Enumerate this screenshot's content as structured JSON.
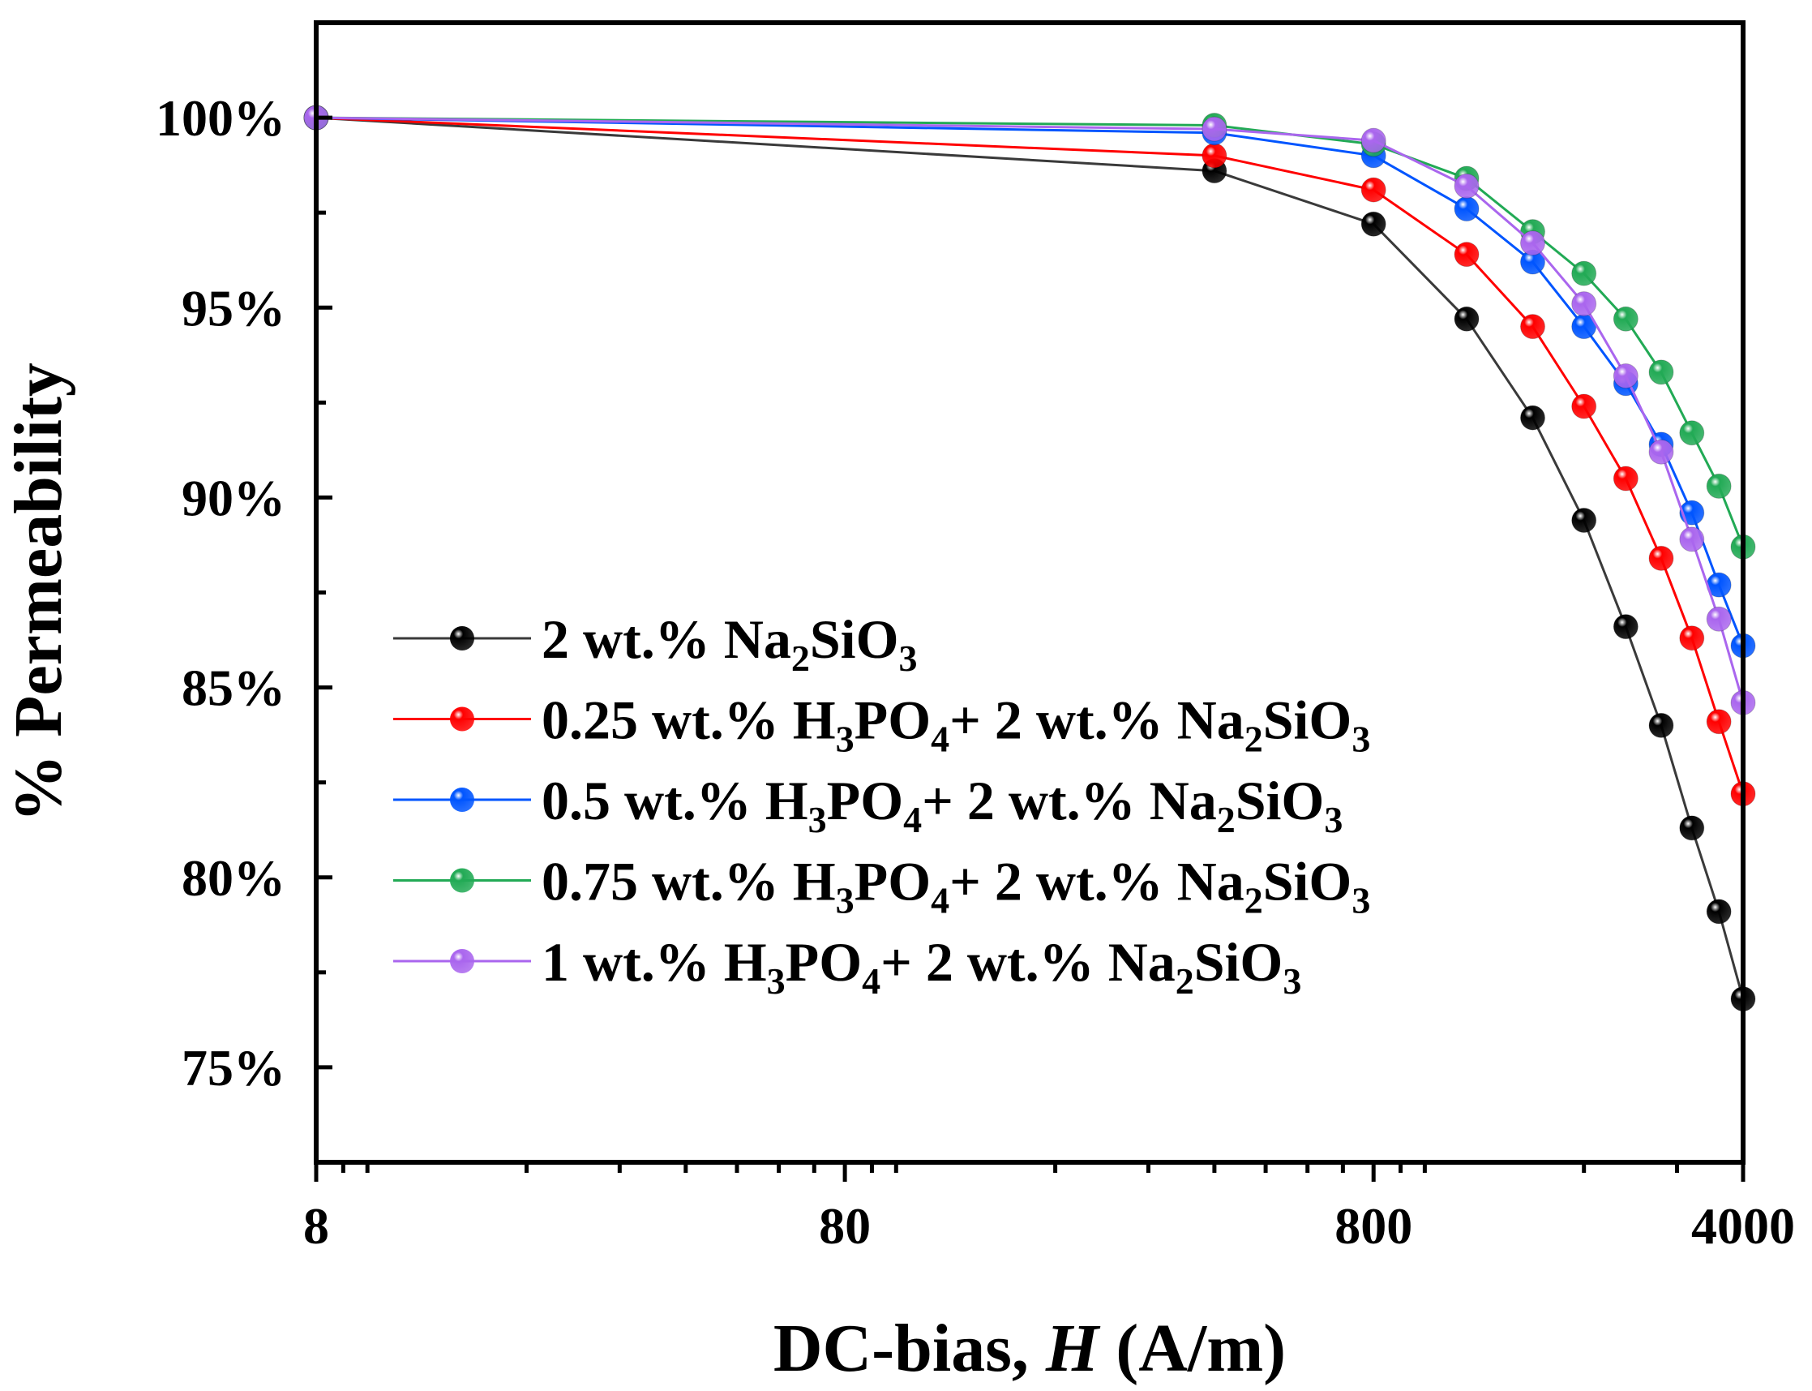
{
  "chart_data": {
    "type": "line",
    "title": "",
    "xlabel": {
      "prefix": "DC-bias, ",
      "italic": "H",
      "suffix": " (A/m)"
    },
    "ylabel": "% Permeability",
    "xscale": "log",
    "xlim": [
      8,
      4000
    ],
    "ylim": [
      72.5,
      102.5
    ],
    "x_ticks": [
      8,
      80,
      800,
      4000
    ],
    "x_tick_labels": [
      "8",
      "80",
      "800",
      "4000"
    ],
    "y_ticks": [
      75,
      80,
      85,
      90,
      95,
      100
    ],
    "y_tick_labels": [
      "75%",
      "80%",
      "85%",
      "90%",
      "95%",
      "100%"
    ],
    "legend_position": "center-left",
    "x": [
      8,
      400,
      800,
      1200,
      1600,
      2000,
      2400,
      2800,
      3200,
      3600,
      4000
    ],
    "series": [
      {
        "name": "2 wt.% Na2SiO3",
        "legend": [
          [
            "t",
            "2 wt.% Na"
          ],
          [
            "sub",
            "2"
          ],
          [
            "t",
            "SiO"
          ],
          [
            "sub",
            "3"
          ]
        ],
        "color": "#000000",
        "line_color": "#3a3a3a",
        "values": [
          100,
          98.6,
          97.2,
          94.7,
          92.1,
          89.4,
          86.6,
          84.0,
          81.3,
          79.1,
          76.8
        ]
      },
      {
        "name": "0.25 wt.% H3PO4+ 2 wt.% Na2SiO3",
        "legend": [
          [
            "t",
            "0.25 wt.% H"
          ],
          [
            "sub",
            "3"
          ],
          [
            "t",
            "PO"
          ],
          [
            "sub",
            "4"
          ],
          [
            "t",
            "+ 2 wt.% Na"
          ],
          [
            "sub",
            "2"
          ],
          [
            "t",
            "SiO"
          ],
          [
            "sub",
            "3"
          ]
        ],
        "color": "#ff0000",
        "line_color": "#ff0000",
        "values": [
          100,
          99.0,
          98.1,
          96.4,
          94.5,
          92.4,
          90.5,
          88.4,
          86.3,
          84.1,
          82.2
        ]
      },
      {
        "name": "0.5 wt.% H3PO4+ 2 wt.% Na2SiO3",
        "legend": [
          [
            "t",
            "0.5 wt.% H"
          ],
          [
            "sub",
            "3"
          ],
          [
            "t",
            "PO"
          ],
          [
            "sub",
            "4"
          ],
          [
            "t",
            "+ 2 wt.% Na"
          ],
          [
            "sub",
            "2"
          ],
          [
            "t",
            "SiO"
          ],
          [
            "sub",
            "3"
          ]
        ],
        "color": "#0055ff",
        "line_color": "#0055ff",
        "values": [
          100,
          99.6,
          99.0,
          97.6,
          96.2,
          94.5,
          93.0,
          91.4,
          89.6,
          87.7,
          86.1
        ]
      },
      {
        "name": "0.75 wt.% H3PO4+ 2 wt.% Na2SiO3",
        "legend": [
          [
            "t",
            "0.75 wt.% H"
          ],
          [
            "sub",
            "3"
          ],
          [
            "t",
            "PO"
          ],
          [
            "sub",
            "4"
          ],
          [
            "t",
            "+ 2 wt.% Na"
          ],
          [
            "sub",
            "2"
          ],
          [
            "t",
            "SiO"
          ],
          [
            "sub",
            "3"
          ]
        ],
        "color": "#22aa55",
        "line_color": "#22aa55",
        "values": [
          100,
          99.8,
          99.3,
          98.4,
          97.0,
          95.9,
          94.7,
          93.3,
          91.7,
          90.3,
          88.7
        ]
      },
      {
        "name": "1 wt.% H3PO4+ 2 wt.% Na2SiO3",
        "legend": [
          [
            "t",
            "1 wt.% H"
          ],
          [
            "sub",
            "3"
          ],
          [
            "t",
            "PO"
          ],
          [
            "sub",
            "4"
          ],
          [
            "t",
            "+ 2 wt.% Na"
          ],
          [
            "sub",
            "2"
          ],
          [
            "t",
            "SiO"
          ],
          [
            "sub",
            "3"
          ]
        ],
        "color": "#aa66ee",
        "line_color": "#aa66ee",
        "values": [
          100,
          99.7,
          99.4,
          98.2,
          96.7,
          95.1,
          93.2,
          91.2,
          88.9,
          86.8,
          84.6
        ]
      }
    ]
  }
}
